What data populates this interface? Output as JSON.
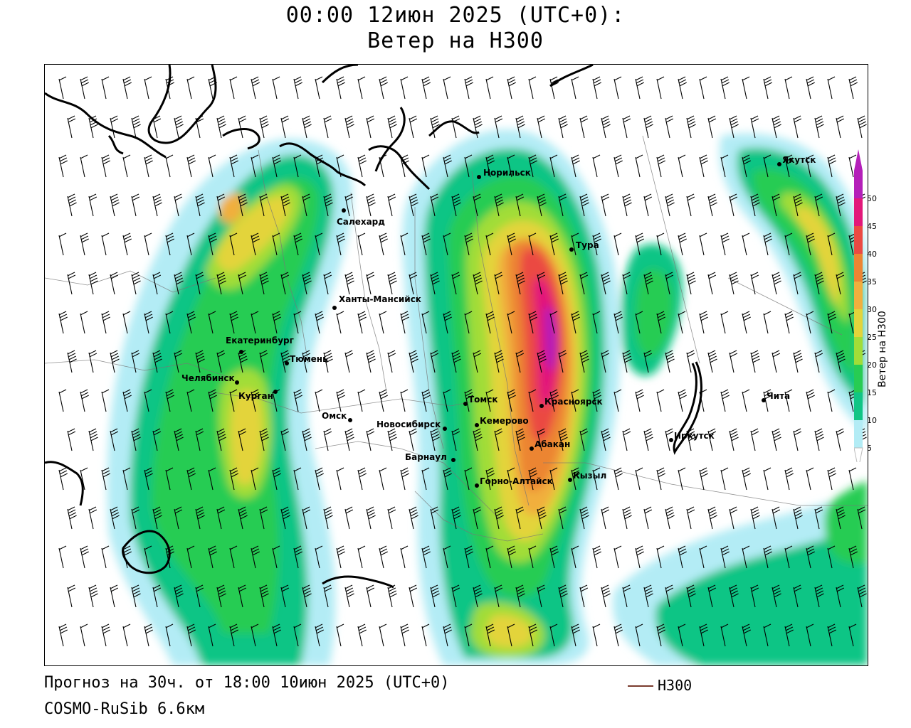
{
  "header": {
    "line1": "00:00 12июн 2025 (UTC+0):",
    "line2": "Ветер на H300"
  },
  "footer": {
    "forecast": "Прогноз на 30ч. от 18:00 10июн 2025 (UTC+0)",
    "model": "COSMO-RuSib 6.6км",
    "contour_label": "H300"
  },
  "colors": {
    "c5": "#b3ecf5",
    "c10": "#10c585",
    "c15": "#27cc53",
    "c20": "#a1dd38",
    "c25": "#e3d43b",
    "c30": "#f1af3e",
    "c35": "#ec8533",
    "c40": "#eb4a43",
    "c45": "#e2187a",
    "c50": "#b41fb9",
    "contour": "#7a3b2e"
  },
  "legend": {
    "title": "Ветер на H300",
    "ticks": [
      "5",
      "10",
      "15",
      "20",
      "25",
      "30",
      "35",
      "40",
      "45",
      "50"
    ]
  },
  "cities": [
    {
      "name": "Норильск"
    },
    {
      "name": "Салехард"
    },
    {
      "name": "Тура"
    },
    {
      "name": "Ханты-Мансийск"
    },
    {
      "name": "Екатеринбург"
    },
    {
      "name": "Тюмень"
    },
    {
      "name": "Челябинск"
    },
    {
      "name": "Курган"
    },
    {
      "name": "Омск"
    },
    {
      "name": "Томск"
    },
    {
      "name": "Новосибирск"
    },
    {
      "name": "Кемерово"
    },
    {
      "name": "Красноярск"
    },
    {
      "name": "Абакан"
    },
    {
      "name": "Барнаул"
    },
    {
      "name": "Горно-Алтайск"
    },
    {
      "name": "Кызыл"
    },
    {
      "name": "Иркутск"
    },
    {
      "name": "Чита"
    },
    {
      "name": "Якутск"
    }
  ]
}
